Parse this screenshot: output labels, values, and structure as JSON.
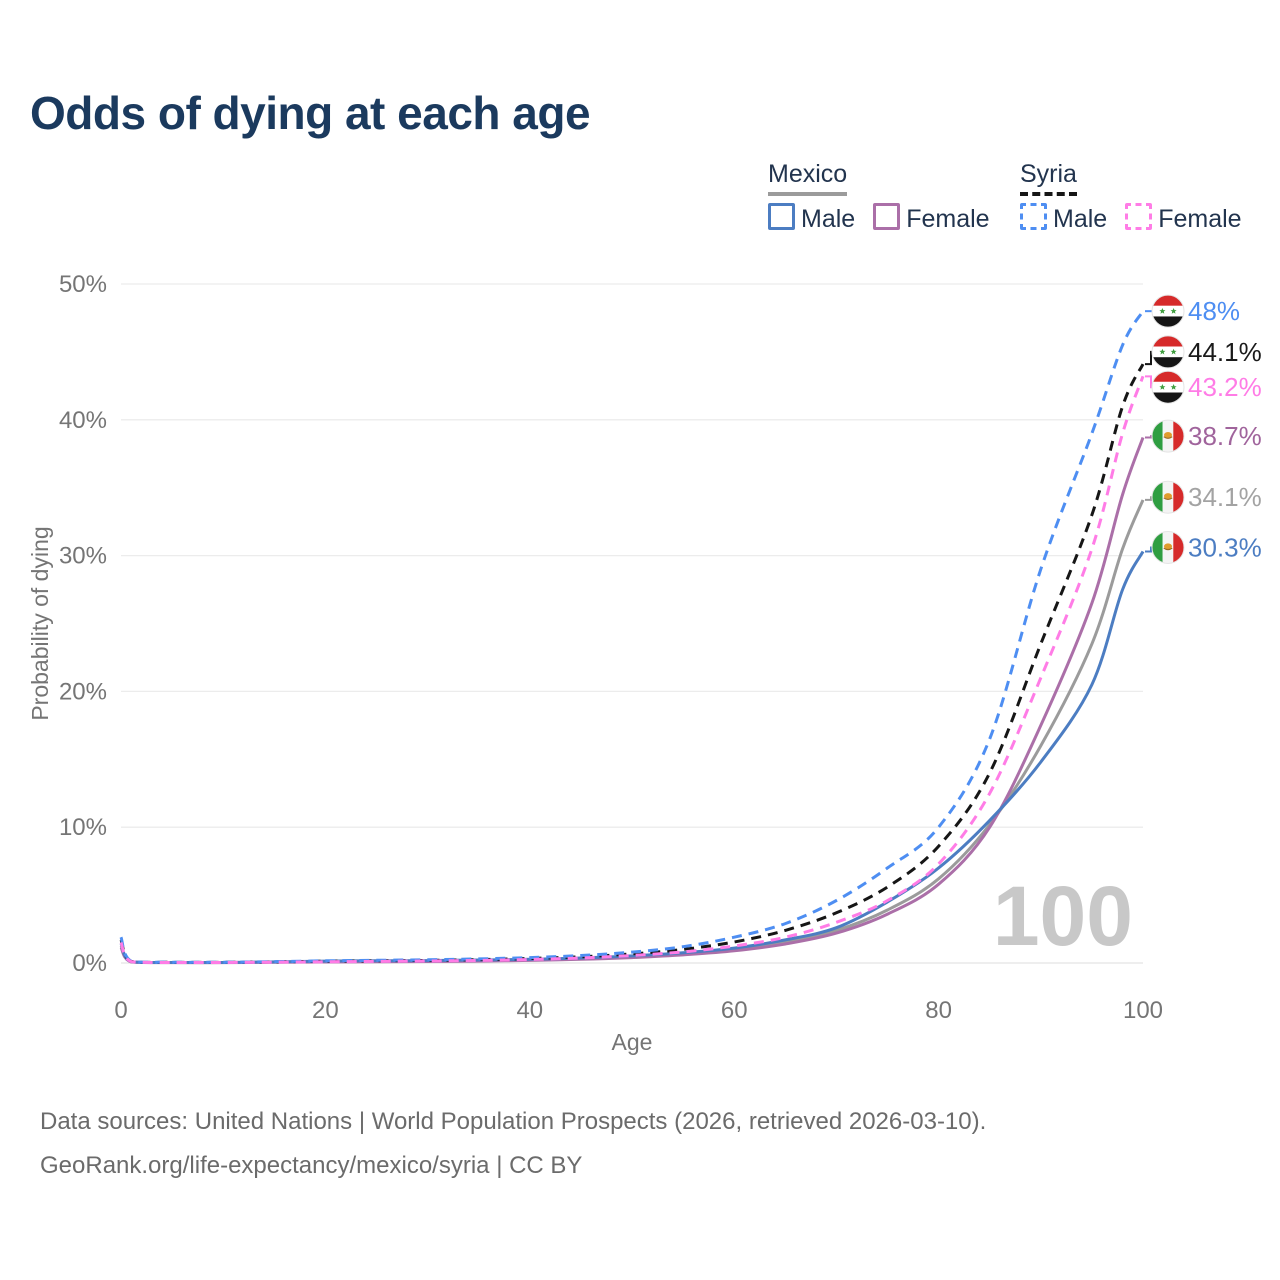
{
  "title": "Odds of dying at each age",
  "legend": {
    "groups": [
      {
        "country": "Mexico",
        "line_style": "solid",
        "rule_color": "#9b9b9b",
        "items": [
          {
            "label": "Male",
            "color": "#4c7dc2",
            "dashed": false
          },
          {
            "label": "Female",
            "color": "#ab6fa8",
            "dashed": false
          }
        ]
      },
      {
        "country": "Syria",
        "line_style": "dashed",
        "rule_color": "#161616",
        "items": [
          {
            "label": "Male",
            "color": "#4e8ef2",
            "dashed": true
          },
          {
            "label": "Female",
            "color": "#ff7ce6",
            "dashed": true
          }
        ]
      }
    ]
  },
  "chart_data": {
    "type": "line",
    "title": "Odds of dying at each age",
    "xlabel": "Age",
    "ylabel": "Probability of dying",
    "xlim": [
      0,
      100
    ],
    "ylim": [
      0,
      50
    ],
    "xticks": [
      0,
      20,
      40,
      60,
      80,
      100
    ],
    "ytick_labels": [
      "0%",
      "10%",
      "20%",
      "30%",
      "40%",
      "50%"
    ],
    "grid": true,
    "legend_position": "top-right",
    "watermark_age": "100",
    "x": [
      0,
      1,
      5,
      10,
      15,
      20,
      25,
      30,
      35,
      40,
      45,
      50,
      55,
      60,
      65,
      70,
      75,
      80,
      85,
      90,
      95,
      98,
      100
    ],
    "series": [
      {
        "name": "Mexico",
        "country": "Mexico",
        "sex": "Both",
        "color": "#9b9b9b",
        "dashed": false,
        "flag": "mexico",
        "end_label": "34.1%",
        "label_color": "#a3a3a3",
        "label_value": 34.3,
        "values": [
          1.3,
          0.09,
          0.035,
          0.035,
          0.065,
          0.1,
          0.12,
          0.15,
          0.18,
          0.23,
          0.32,
          0.46,
          0.67,
          1.0,
          1.55,
          2.4,
          3.9,
          6.2,
          10.2,
          16.0,
          23.5,
          30.5,
          34.1
        ]
      },
      {
        "name": "Mexico Female",
        "country": "Mexico",
        "sex": "Female",
        "color": "#ab6fa8",
        "dashed": false,
        "flag": "mexico",
        "end_label": "38.7%",
        "label_color": "#a0649c",
        "label_value": 38.8,
        "values": [
          1.15,
          0.08,
          0.03,
          0.03,
          0.05,
          0.07,
          0.09,
          0.11,
          0.14,
          0.19,
          0.27,
          0.4,
          0.6,
          0.9,
          1.4,
          2.2,
          3.6,
          5.8,
          10.0,
          17.5,
          26.5,
          34.5,
          38.7
        ]
      },
      {
        "name": "Mexico Male",
        "country": "Mexico",
        "sex": "Male",
        "color": "#4c7dc2",
        "dashed": false,
        "flag": "mexico",
        "end_label": "30.3%",
        "label_color": "#4c7dc2",
        "label_value": 30.6,
        "values": [
          1.45,
          0.1,
          0.04,
          0.04,
          0.08,
          0.14,
          0.16,
          0.18,
          0.22,
          0.27,
          0.37,
          0.52,
          0.75,
          1.1,
          1.7,
          2.6,
          4.5,
          7.0,
          10.5,
          14.8,
          20.5,
          27.5,
          30.3
        ]
      },
      {
        "name": "Syria",
        "country": "Syria",
        "sex": "Both",
        "color": "#161616",
        "dashed": true,
        "flag": "syria",
        "end_label": "44.1%",
        "label_color": "#1a1a1a",
        "label_value": 45.0,
        "values": [
          1.7,
          0.12,
          0.05,
          0.05,
          0.08,
          0.13,
          0.16,
          0.19,
          0.25,
          0.33,
          0.46,
          0.67,
          1.0,
          1.55,
          2.4,
          3.7,
          5.6,
          8.6,
          14.0,
          23.5,
          33.0,
          41.0,
          44.1
        ]
      },
      {
        "name": "Syria Male",
        "country": "Syria",
        "sex": "Male",
        "color": "#4e8ef2",
        "dashed": true,
        "flag": "syria",
        "end_label": "48%",
        "label_color": "#4e8ef2",
        "label_value": 48.0,
        "values": [
          1.9,
          0.14,
          0.06,
          0.06,
          0.1,
          0.16,
          0.2,
          0.24,
          0.3,
          0.4,
          0.55,
          0.8,
          1.2,
          1.9,
          2.9,
          4.6,
          7.0,
          10.0,
          16.5,
          29.0,
          39.0,
          45.5,
          48.0
        ]
      },
      {
        "name": "Syria Female",
        "country": "Syria",
        "sex": "Female",
        "color": "#ff7ce6",
        "dashed": true,
        "flag": "syria",
        "end_label": "43.2%",
        "label_color": "#ff7ce6",
        "label_value": 42.4,
        "values": [
          1.5,
          0.1,
          0.04,
          0.04,
          0.06,
          0.09,
          0.12,
          0.15,
          0.19,
          0.26,
          0.37,
          0.55,
          0.82,
          1.25,
          1.9,
          3.0,
          4.6,
          7.3,
          12.5,
          21.0,
          30.5,
          39.0,
          43.2
        ]
      }
    ]
  },
  "footer": {
    "line1": "Data sources: United Nations | World Population Prospects (2026, retrieved 2026-03-10).",
    "line2": "GeoRank.org/life-expectancy/mexico/syria | CC BY"
  }
}
